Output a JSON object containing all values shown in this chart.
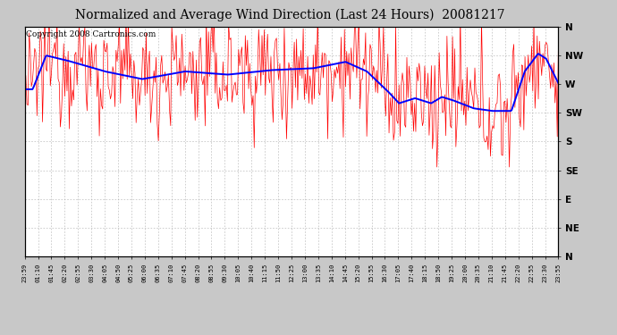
{
  "title": "Normalized and Average Wind Direction (Last 24 Hours)  20081217",
  "copyright": "Copyright 2008 Cartronics.com",
  "background_color": "#c8c8c8",
  "plot_bg_color": "#ffffff",
  "y_labels": [
    "N",
    "NW",
    "W",
    "SW",
    "S",
    "SE",
    "E",
    "NE",
    "N"
  ],
  "y_ticks": [
    360,
    315,
    270,
    225,
    180,
    135,
    90,
    45,
    0
  ],
  "x_tick_labels": [
    "23:59",
    "01:10",
    "01:45",
    "02:20",
    "02:55",
    "03:30",
    "04:05",
    "04:50",
    "05:25",
    "06:00",
    "06:35",
    "07:10",
    "07:45",
    "08:20",
    "08:55",
    "09:30",
    "10:05",
    "10:40",
    "11:15",
    "11:50",
    "12:25",
    "13:00",
    "13:35",
    "14:10",
    "14:45",
    "15:20",
    "15:55",
    "16:30",
    "17:05",
    "17:40",
    "18:15",
    "18:50",
    "19:25",
    "20:00",
    "20:35",
    "21:10",
    "21:45",
    "22:20",
    "22:55",
    "23:30",
    "23:55"
  ],
  "line_color_raw": "#ff0000",
  "line_color_avg": "#0000ff",
  "grid_color": "#aaaaaa",
  "title_fontsize": 10,
  "copyright_fontsize": 6.5
}
